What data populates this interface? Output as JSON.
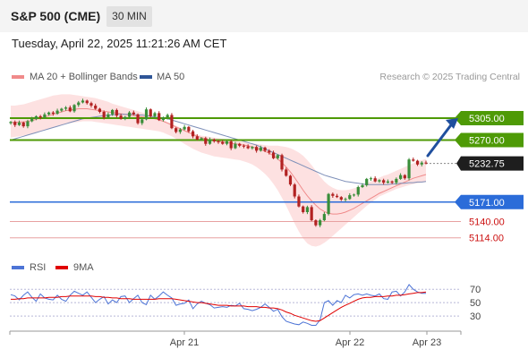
{
  "header": {
    "instrument": "S&P 500 (CME)",
    "timeframe": "30 MIN"
  },
  "datetime": "Tuesday, April 22, 2025 11:21:26 AM CET",
  "legend": {
    "bollinger": {
      "label": "MA 20 + Bollinger Bands",
      "color": "#f08a8a"
    },
    "ma50": {
      "label": "MA 50",
      "color": "#2f5597"
    },
    "rsi": {
      "label": "RSI",
      "color": "#4d74d6"
    },
    "rsi_ma": {
      "label": "9MA",
      "color": "#e00000"
    }
  },
  "copyright": "Research © 2025 Trading Central",
  "colors": {
    "up": "#3a8e3a",
    "down": "#b22222",
    "resistance": "#4e9a06",
    "pivot": "#2b6cd9",
    "support": "#cc1111",
    "arrow": "#1f4f9e"
  },
  "chart_data": [
    {
      "type": "candlestick",
      "ylim": [
        5085,
        5345
      ],
      "x_tick_labels": [
        "Apr 21",
        "Apr 22",
        "Apr 23"
      ],
      "levels": [
        {
          "value": 5305.0,
          "label": "5305.00",
          "kind": "resistance"
        },
        {
          "value": 5270.0,
          "label": "5270.00",
          "kind": "resistance"
        },
        {
          "value": 5232.75,
          "label": "5232.75",
          "kind": "last"
        },
        {
          "value": 5171.0,
          "label": "5171.00",
          "kind": "pivot"
        },
        {
          "value": 5140.0,
          "label": "5140.00",
          "kind": "support"
        },
        {
          "value": 5114.0,
          "label": "5114.00",
          "kind": "support"
        }
      ],
      "close": [
        5299,
        5294,
        5298,
        5292,
        5300,
        5304,
        5308,
        5306,
        5311,
        5314,
        5312,
        5317,
        5320,
        5322,
        5316,
        5326,
        5330,
        5333,
        5329,
        5325,
        5320,
        5315,
        5306,
        5311,
        5318,
        5309,
        5304,
        5307,
        5314,
        5311,
        5297,
        5303,
        5319,
        5308,
        5313,
        5302,
        5306,
        5310,
        5289,
        5283,
        5287,
        5291,
        5284,
        5276,
        5271,
        5273,
        5264,
        5271,
        5268,
        5267,
        5264,
        5268,
        5257,
        5264,
        5261,
        5260,
        5257,
        5259,
        5253,
        5258,
        5253,
        5250,
        5241,
        5246,
        5223,
        5213,
        5199,
        5180,
        5164,
        5155,
        5163,
        5142,
        5134,
        5142,
        5152,
        5184,
        5181,
        5179,
        5175,
        5176,
        5182,
        5183,
        5195,
        5198,
        5208,
        5209,
        5204,
        5206,
        5202,
        5204,
        5202,
        5208,
        5214,
        5209,
        5239,
        5237,
        5231,
        5234,
        5232.75
      ],
      "bollinger_mid": [
        5298,
        5298,
        5299,
        5299,
        5300,
        5301,
        5303,
        5305,
        5307,
        5309,
        5311,
        5313,
        5315,
        5317,
        5318,
        5319,
        5320,
        5320,
        5320,
        5319,
        5318,
        5317,
        5316,
        5315,
        5314,
        5313,
        5312,
        5311,
        5310,
        5309,
        5308,
        5307,
        5306,
        5305,
        5304,
        5302,
        5300,
        5297,
        5294,
        5291,
        5288,
        5285,
        5282,
        5279,
        5276,
        5274,
        5272,
        5270,
        5269,
        5268,
        5267,
        5266,
        5265,
        5264,
        5263,
        5262,
        5261,
        5259,
        5257,
        5255,
        5252,
        5249,
        5245,
        5240,
        5234,
        5227,
        5219,
        5210,
        5200,
        5190,
        5181,
        5173,
        5166,
        5160,
        5156,
        5153,
        5152,
        5152,
        5153,
        5155,
        5158,
        5161,
        5165,
        5169,
        5173,
        5177,
        5181,
        5185,
        5188,
        5191,
        5194,
        5197,
        5200,
        5203,
        5206,
        5209,
        5211,
        5213,
        5215
      ],
      "bollinger_upper": [
        5325,
        5325,
        5326,
        5327,
        5329,
        5331,
        5333,
        5335,
        5337,
        5339,
        5341,
        5342,
        5343,
        5343,
        5343,
        5342,
        5341,
        5340,
        5339,
        5338,
        5337,
        5335,
        5333,
        5331,
        5328,
        5326,
        5324,
        5322,
        5320,
        5318,
        5316,
        5314,
        5312,
        5310,
        5308,
        5305,
        5302,
        5299,
        5296,
        5293,
        5290,
        5287,
        5284,
        5281,
        5279,
        5277,
        5276,
        5275,
        5274,
        5273,
        5272,
        5271,
        5270,
        5269,
        5268,
        5267,
        5266,
        5265,
        5264,
        5263,
        5262,
        5261,
        5261,
        5261,
        5260,
        5259,
        5257,
        5254,
        5250,
        5245,
        5238,
        5230,
        5221,
        5212,
        5204,
        5198,
        5194,
        5191,
        5190,
        5190,
        5191,
        5193,
        5195,
        5198,
        5201,
        5204,
        5207,
        5210,
        5213,
        5215,
        5218,
        5221,
        5224,
        5227,
        5230,
        5233,
        5236,
        5238,
        5240
      ],
      "bollinger_lower": [
        5274,
        5275,
        5276,
        5277,
        5278,
        5280,
        5282,
        5284,
        5286,
        5288,
        5290,
        5292,
        5294,
        5296,
        5297,
        5298,
        5299,
        5300,
        5300,
        5300,
        5299,
        5298,
        5297,
        5296,
        5295,
        5294,
        5293,
        5292,
        5291,
        5290,
        5289,
        5288,
        5287,
        5286,
        5285,
        5284,
        5282,
        5279,
        5276,
        5272,
        5268,
        5264,
        5260,
        5256,
        5253,
        5250,
        5248,
        5246,
        5244,
        5243,
        5242,
        5241,
        5240,
        5239,
        5238,
        5236,
        5234,
        5231,
        5227,
        5222,
        5216,
        5209,
        5200,
        5190,
        5178,
        5165,
        5151,
        5137,
        5124,
        5113,
        5105,
        5101,
        5100,
        5102,
        5106,
        5111,
        5117,
        5123,
        5129,
        5135,
        5141,
        5147,
        5153,
        5159,
        5165,
        5170,
        5175,
        5180,
        5183,
        5186,
        5189,
        5192,
        5194,
        5196,
        5198,
        5200,
        5201,
        5202,
        5203
      ],
      "ma50": [
        5270,
        5272,
        5274,
        5276,
        5278,
        5280,
        5282,
        5284,
        5286,
        5288,
        5290,
        5292,
        5294,
        5296,
        5298,
        5300,
        5302,
        5304,
        5305,
        5306,
        5307,
        5308,
        5309,
        5310,
        5310,
        5311,
        5311,
        5311,
        5311,
        5311,
        5310,
        5310,
        5309,
        5308,
        5307,
        5306,
        5305,
        5304,
        5302,
        5300,
        5298,
        5296,
        5294,
        5292,
        5290,
        5288,
        5286,
        5284,
        5282,
        5280,
        5278,
        5276,
        5274,
        5272,
        5270,
        5268,
        5266,
        5264,
        5262,
        5259,
        5256,
        5253,
        5250,
        5247,
        5244,
        5241,
        5238,
        5235,
        5232,
        5229,
        5226,
        5223,
        5220,
        5217,
        5214,
        5212,
        5210,
        5208,
        5206,
        5204,
        5203,
        5202,
        5201,
        5200,
        5199,
        5199,
        5199,
        5199,
        5199,
        5199,
        5200,
        5200,
        5201,
        5201,
        5202,
        5202,
        5203,
        5203,
        5204
      ],
      "forecast_arrow": {
        "from": 5245,
        "to": 5305
      }
    },
    {
      "type": "line",
      "y_tick_labels": [
        "70",
        "50",
        "30"
      ],
      "ylim": [
        10,
        85
      ],
      "rsi": [
        62,
        60,
        54,
        61,
        66,
        58,
        52,
        63,
        57,
        55,
        54,
        61,
        55,
        52,
        61,
        67,
        64,
        61,
        66,
        58,
        50,
        55,
        59,
        48,
        54,
        50,
        59,
        60,
        50,
        56,
        61,
        50,
        47,
        61,
        55,
        60,
        66,
        61,
        57,
        46,
        48,
        49,
        54,
        41,
        48,
        52,
        49,
        47,
        42,
        43,
        44,
        43,
        46,
        45,
        49,
        41,
        40,
        38,
        40,
        43,
        48,
        43,
        37,
        40,
        29,
        22,
        20,
        18,
        17,
        21,
        19,
        16,
        16,
        24,
        50,
        53,
        46,
        53,
        50,
        61,
        57,
        62,
        63,
        61,
        63,
        61,
        60,
        63,
        56,
        55,
        66,
        67,
        60,
        66,
        77,
        70,
        66,
        64,
        64
      ],
      "ma9": [
        55,
        55,
        56,
        56,
        57,
        57,
        57,
        57,
        57,
        58,
        58,
        58,
        59,
        59,
        60,
        60,
        60,
        60,
        60,
        60,
        59,
        59,
        58,
        58,
        57,
        57,
        56,
        56,
        56,
        55,
        55,
        55,
        55,
        55,
        55,
        56,
        56,
        56,
        56,
        55,
        54,
        53,
        52,
        51,
        50,
        50,
        49,
        48,
        47,
        46,
        46,
        46,
        45,
        45,
        45,
        45,
        44,
        44,
        44,
        43,
        43,
        42,
        42,
        41,
        39,
        36,
        34,
        31,
        29,
        27,
        25,
        23,
        22,
        23,
        27,
        31,
        35,
        39,
        43,
        46,
        49,
        52,
        55,
        57,
        58,
        58,
        59,
        59,
        59,
        60,
        60,
        61,
        61,
        62,
        63,
        64,
        65,
        65,
        66
      ]
    }
  ]
}
